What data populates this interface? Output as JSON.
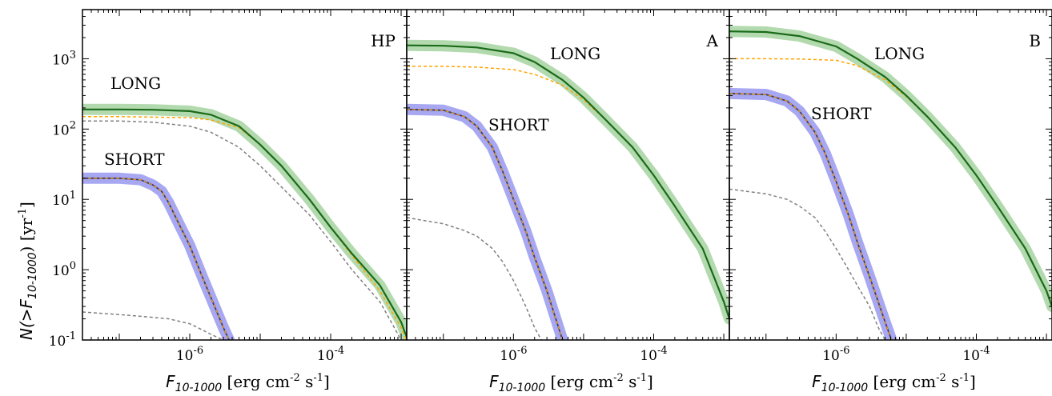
{
  "ylabel": {
    "main": "N(>F",
    "sub": "10-1000",
    "unit": ") [yr",
    "sup": "-1",
    "end": "]"
  },
  "xlabel": {
    "var": "F",
    "sub": "10-1000",
    "unit": " [erg cm",
    "sup1": "-2",
    "mid": " s",
    "sup2": "-1",
    "end": "]"
  },
  "yticks": [
    {
      "base": "10",
      "exp": "3",
      "v": 3
    },
    {
      "base": "10",
      "exp": "2",
      "v": 2
    },
    {
      "base": "10",
      "exp": "1",
      "v": 1
    },
    {
      "base": "10",
      "exp": "0",
      "v": 0
    },
    {
      "base": "10",
      "exp": "-1",
      "v": -1
    }
  ],
  "xticks": [
    {
      "base": "10",
      "exp": "-6",
      "v": -6
    },
    {
      "base": "10",
      "exp": "-4",
      "v": -4
    }
  ],
  "colors": {
    "long_band": "#a6d3a0",
    "long_line": "#1a6b1a",
    "short_band": "#9999f0",
    "short_line": "#3a3a6a",
    "model_line": "#ffa500",
    "gray_line": "#808080"
  },
  "chart_data": [
    {
      "type": "line",
      "panel_label": "HP",
      "x_scale": "log",
      "y_scale": "log",
      "xlim": [
        3e-08,
        0.0012
      ],
      "ylim": [
        0.1,
        5000
      ],
      "label_long": "LONG",
      "label_short": "SHORT",
      "long": {
        "x": [
          3e-08,
          1e-07,
          3e-07,
          1e-06,
          2e-06,
          5e-06,
          1e-05,
          2e-05,
          5e-05,
          0.0001,
          0.0002,
          0.0005,
          0.001,
          0.0012
        ],
        "y": [
          190,
          190,
          188,
          180,
          160,
          110,
          60,
          30,
          10,
          4,
          1.7,
          0.6,
          0.18,
          0.11
        ]
      },
      "long_model": {
        "x": [
          3e-08,
          1e-07,
          3e-07,
          1e-06,
          2e-06,
          5e-06,
          1e-05,
          2e-05,
          5e-05,
          0.0001,
          0.0002,
          0.0005,
          0.001,
          0.0012
        ],
        "y": [
          150,
          150,
          148,
          145,
          135,
          105,
          60,
          30,
          10,
          4,
          1.6,
          0.5,
          0.15,
          0.1
        ]
      },
      "short": {
        "x": [
          3e-08,
          1e-07,
          2e-07,
          3e-07,
          4e-07,
          5e-07,
          7e-07,
          1e-06,
          1.5e-06,
          2e-06,
          3e-06,
          4e-06
        ],
        "y": [
          20,
          20,
          19,
          16,
          13,
          9,
          4.5,
          2.2,
          0.8,
          0.4,
          0.15,
          0.08
        ]
      },
      "gray": [
        {
          "x": [
            3e-08,
            1e-07,
            3e-07,
            1e-06,
            2e-06,
            5e-06,
            1e-05,
            2e-05,
            5e-05,
            0.0001,
            0.0002,
            0.0005,
            0.0008,
            0.001
          ],
          "y": [
            130,
            130,
            125,
            110,
            90,
            55,
            30,
            15,
            6,
            2.5,
            1.0,
            0.35,
            0.15,
            0.1
          ]
        },
        {
          "x": [
            3e-08,
            1e-07,
            3e-07,
            5e-07,
            1e-06,
            1.5e-06,
            2e-06,
            3e-06
          ],
          "y": [
            0.25,
            0.23,
            0.21,
            0.2,
            0.17,
            0.14,
            0.12,
            0.1
          ]
        }
      ]
    },
    {
      "type": "line",
      "panel_label": "A",
      "x_scale": "log",
      "y_scale": "log",
      "xlim": [
        3e-08,
        0.0012
      ],
      "ylim": [
        0.1,
        5000
      ],
      "label_long": "LONG",
      "label_short": "SHORT",
      "long": {
        "x": [
          3e-08,
          1e-07,
          3e-07,
          1e-06,
          2e-06,
          5e-06,
          1e-05,
          2e-05,
          5e-05,
          0.0001,
          0.0002,
          0.0005,
          0.001,
          0.0012
        ],
        "y": [
          1550,
          1530,
          1450,
          1200,
          900,
          500,
          280,
          140,
          55,
          22,
          8,
          2,
          0.35,
          0.2
        ]
      },
      "long_model": {
        "x": [
          3e-08,
          1e-07,
          3e-07,
          1e-06,
          2e-06,
          5e-06,
          1e-05,
          2e-05,
          5e-05,
          0.0001,
          0.0002,
          0.0005,
          0.001,
          0.0012
        ],
        "y": [
          780,
          780,
          760,
          700,
          600,
          420,
          260,
          140,
          55,
          22,
          8,
          2,
          0.35,
          0.2
        ]
      },
      "short": {
        "x": [
          3e-08,
          1e-07,
          2e-07,
          3e-07,
          5e-07,
          7e-07,
          1e-06,
          1.5e-06,
          2e-06,
          3e-06,
          5e-06
        ],
        "y": [
          190,
          185,
          150,
          110,
          55,
          25,
          10,
          3.5,
          1.5,
          0.5,
          0.1
        ]
      },
      "gray": [
        {
          "x": [
            3e-08,
            1e-07,
            2e-07,
            3e-07,
            5e-07,
            7e-07,
            1e-06,
            1.5e-06,
            2e-06,
            2.5e-06
          ],
          "y": [
            5.5,
            4.5,
            3.6,
            3.0,
            2.0,
            1.3,
            0.7,
            0.3,
            0.15,
            0.1
          ]
        }
      ]
    },
    {
      "type": "line",
      "panel_label": "B",
      "x_scale": "log",
      "y_scale": "log",
      "xlim": [
        3e-08,
        0.0012
      ],
      "ylim": [
        0.1,
        5000
      ],
      "label_long": "LONG",
      "label_short": "SHORT",
      "long": {
        "x": [
          3e-08,
          1e-07,
          3e-07,
          1e-06,
          2e-06,
          5e-06,
          1e-05,
          2e-05,
          5e-05,
          0.0001,
          0.0002,
          0.0005,
          0.001,
          0.0012
        ],
        "y": [
          2450,
          2400,
          2100,
          1500,
          1000,
          550,
          300,
          150,
          55,
          22,
          8,
          2,
          0.5,
          0.3
        ]
      },
      "long_model": {
        "x": [
          3e-08,
          1e-07,
          3e-07,
          1e-06,
          2e-06,
          5e-06,
          1e-05,
          2e-05,
          5e-05,
          0.0001,
          0.0002,
          0.0005,
          0.001,
          0.0012
        ],
        "y": [
          1000,
          1000,
          990,
          950,
          800,
          500,
          290,
          150,
          55,
          22,
          8,
          2,
          0.5,
          0.3
        ]
      },
      "short": {
        "x": [
          3e-08,
          1e-07,
          2e-07,
          3e-07,
          5e-07,
          7e-07,
          1e-06,
          1.5e-06,
          2e-06,
          3e-06,
          5e-06,
          7e-06
        ],
        "y": [
          320,
          310,
          250,
          180,
          90,
          45,
          18,
          6,
          2.5,
          0.8,
          0.18,
          0.07
        ]
      },
      "gray": [
        {
          "x": [
            3e-08,
            1e-07,
            2e-07,
            3e-07,
            5e-07,
            7e-07,
            1e-06,
            1.5e-06,
            2e-06,
            3e-06,
            4e-06,
            5e-06
          ],
          "y": [
            14,
            12,
            10,
            8,
            5.5,
            3.5,
            2.0,
            1.0,
            0.6,
            0.3,
            0.15,
            0.1
          ]
        }
      ]
    }
  ]
}
